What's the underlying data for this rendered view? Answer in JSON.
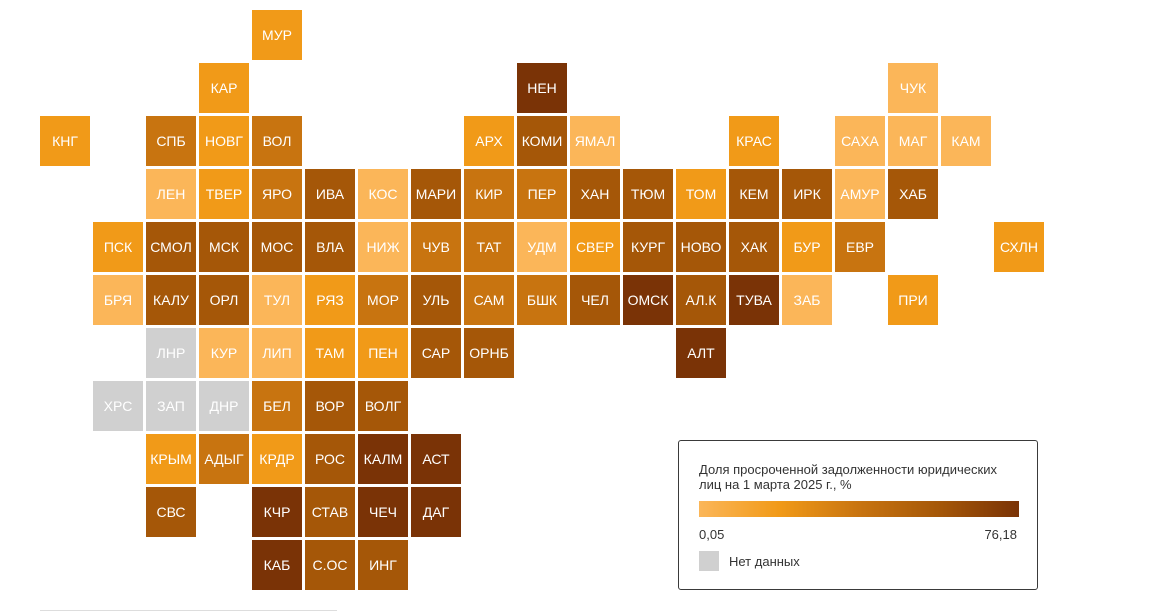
{
  "colors": {
    "scale": [
      "#fbb659",
      "#f19a18",
      "#c87410",
      "#a55708",
      "#7a3306"
    ],
    "no_data": "#d0d0d0"
  },
  "legend": {
    "title": "Доля просроченной задолженности юридических лиц на 1 марта 2025  г., %",
    "min": "0,05",
    "max": "76,18",
    "no_data_label": "Нет данных"
  },
  "regions": [
    {
      "code": "МУР",
      "row": 0,
      "col": 5,
      "shade": 1
    },
    {
      "code": "КАР",
      "row": 1,
      "col": 4,
      "shade": 1
    },
    {
      "code": "НЕН",
      "row": 1,
      "col": 10,
      "shade": 4
    },
    {
      "code": "ЧУК",
      "row": 1,
      "col": 17,
      "shade": 0
    },
    {
      "code": "КНГ",
      "row": 2,
      "col": 1,
      "shade": 1
    },
    {
      "code": "СПБ",
      "row": 2,
      "col": 3,
      "shade": 2
    },
    {
      "code": "НОВГ",
      "row": 2,
      "col": 4,
      "shade": 1
    },
    {
      "code": "ВОЛ",
      "row": 2,
      "col": 5,
      "shade": 2
    },
    {
      "code": "АРХ",
      "row": 2,
      "col": 9,
      "shade": 1
    },
    {
      "code": "КОМИ",
      "row": 2,
      "col": 10,
      "shade": 3
    },
    {
      "code": "ЯМАЛ",
      "row": 2,
      "col": 11,
      "shade": 0
    },
    {
      "code": "КРАС",
      "row": 2,
      "col": 14,
      "shade": 1
    },
    {
      "code": "САХА",
      "row": 2,
      "col": 16,
      "shade": 0
    },
    {
      "code": "МАГ",
      "row": 2,
      "col": 17,
      "shade": 0
    },
    {
      "code": "КАМ",
      "row": 2,
      "col": 18,
      "shade": 0
    },
    {
      "code": "ЛЕН",
      "row": 3,
      "col": 3,
      "shade": 0
    },
    {
      "code": "ТВЕР",
      "row": 3,
      "col": 4,
      "shade": 1
    },
    {
      "code": "ЯРО",
      "row": 3,
      "col": 5,
      "shade": 2
    },
    {
      "code": "ИВА",
      "row": 3,
      "col": 6,
      "shade": 3
    },
    {
      "code": "КОС",
      "row": 3,
      "col": 7,
      "shade": 0
    },
    {
      "code": "МАРИ",
      "row": 3,
      "col": 8,
      "shade": 3
    },
    {
      "code": "КИР",
      "row": 3,
      "col": 9,
      "shade": 2
    },
    {
      "code": "ПЕР",
      "row": 3,
      "col": 10,
      "shade": 2
    },
    {
      "code": "ХАН",
      "row": 3,
      "col": 11,
      "shade": 3
    },
    {
      "code": "ТЮМ",
      "row": 3,
      "col": 12,
      "shade": 3
    },
    {
      "code": "ТОМ",
      "row": 3,
      "col": 13,
      "shade": 1
    },
    {
      "code": "КЕМ",
      "row": 3,
      "col": 14,
      "shade": 3
    },
    {
      "code": "ИРК",
      "row": 3,
      "col": 15,
      "shade": 3
    },
    {
      "code": "АМУР",
      "row": 3,
      "col": 16,
      "shade": 0
    },
    {
      "code": "ХАБ",
      "row": 3,
      "col": 17,
      "shade": 3
    },
    {
      "code": "ПСК",
      "row": 4,
      "col": 2,
      "shade": 1
    },
    {
      "code": "СМОЛ",
      "row": 4,
      "col": 3,
      "shade": 3
    },
    {
      "code": "МСК",
      "row": 4,
      "col": 4,
      "shade": 3
    },
    {
      "code": "МОС",
      "row": 4,
      "col": 5,
      "shade": 3
    },
    {
      "code": "ВЛА",
      "row": 4,
      "col": 6,
      "shade": 3
    },
    {
      "code": "НИЖ",
      "row": 4,
      "col": 7,
      "shade": 0
    },
    {
      "code": "ЧУВ",
      "row": 4,
      "col": 8,
      "shade": 2
    },
    {
      "code": "ТАТ",
      "row": 4,
      "col": 9,
      "shade": 2
    },
    {
      "code": "УДМ",
      "row": 4,
      "col": 10,
      "shade": 0
    },
    {
      "code": "СВЕР",
      "row": 4,
      "col": 11,
      "shade": 1
    },
    {
      "code": "КУРГ",
      "row": 4,
      "col": 12,
      "shade": 3
    },
    {
      "code": "НОВО",
      "row": 4,
      "col": 13,
      "shade": 3
    },
    {
      "code": "ХАК",
      "row": 4,
      "col": 14,
      "shade": 3
    },
    {
      "code": "БУР",
      "row": 4,
      "col": 15,
      "shade": 1
    },
    {
      "code": "ЕВР",
      "row": 4,
      "col": 16,
      "shade": 2
    },
    {
      "code": "СХЛН",
      "row": 4,
      "col": 19,
      "shade": 1
    },
    {
      "code": "БРЯ",
      "row": 5,
      "col": 2,
      "shade": 0
    },
    {
      "code": "КАЛУ",
      "row": 5,
      "col": 3,
      "shade": 3
    },
    {
      "code": "ОРЛ",
      "row": 5,
      "col": 4,
      "shade": 3
    },
    {
      "code": "ТУЛ",
      "row": 5,
      "col": 5,
      "shade": 0
    },
    {
      "code": "РЯЗ",
      "row": 5,
      "col": 6,
      "shade": 1
    },
    {
      "code": "МОР",
      "row": 5,
      "col": 7,
      "shade": 2
    },
    {
      "code": "УЛЬ",
      "row": 5,
      "col": 8,
      "shade": 3
    },
    {
      "code": "САМ",
      "row": 5,
      "col": 9,
      "shade": 2
    },
    {
      "code": "БШК",
      "row": 5,
      "col": 10,
      "shade": 2
    },
    {
      "code": "ЧЕЛ",
      "row": 5,
      "col": 11,
      "shade": 3
    },
    {
      "code": "ОМСК",
      "row": 5,
      "col": 12,
      "shade": 4
    },
    {
      "code": "АЛ.К",
      "row": 5,
      "col": 13,
      "shade": 3
    },
    {
      "code": "ТУВА",
      "row": 5,
      "col": 14,
      "shade": 4
    },
    {
      "code": "ЗАБ",
      "row": 5,
      "col": 15,
      "shade": 0
    },
    {
      "code": "ПРИ",
      "row": 5,
      "col": 17,
      "shade": 1
    },
    {
      "code": "ЛНР",
      "row": 6,
      "col": 3,
      "shade": -1
    },
    {
      "code": "КУР",
      "row": 6,
      "col": 4,
      "shade": 0
    },
    {
      "code": "ЛИП",
      "row": 6,
      "col": 5,
      "shade": 0
    },
    {
      "code": "ТАМ",
      "row": 6,
      "col": 6,
      "shade": 1
    },
    {
      "code": "ПЕН",
      "row": 6,
      "col": 7,
      "shade": 1
    },
    {
      "code": "САР",
      "row": 6,
      "col": 8,
      "shade": 3
    },
    {
      "code": "ОРНБ",
      "row": 6,
      "col": 9,
      "shade": 3
    },
    {
      "code": "АЛТ",
      "row": 6,
      "col": 13,
      "shade": 4
    },
    {
      "code": "ХРС",
      "row": 7,
      "col": 2,
      "shade": -1
    },
    {
      "code": "ЗАП",
      "row": 7,
      "col": 3,
      "shade": -1
    },
    {
      "code": "ДНР",
      "row": 7,
      "col": 4,
      "shade": -1
    },
    {
      "code": "БЕЛ",
      "row": 7,
      "col": 5,
      "shade": 2
    },
    {
      "code": "ВОР",
      "row": 7,
      "col": 6,
      "shade": 3
    },
    {
      "code": "ВОЛГ",
      "row": 7,
      "col": 7,
      "shade": 3
    },
    {
      "code": "КРЫМ",
      "row": 8,
      "col": 3,
      "shade": 1
    },
    {
      "code": "АДЫГ",
      "row": 8,
      "col": 4,
      "shade": 2
    },
    {
      "code": "КРДР",
      "row": 8,
      "col": 5,
      "shade": 1
    },
    {
      "code": "РОС",
      "row": 8,
      "col": 6,
      "shade": 3
    },
    {
      "code": "КАЛМ",
      "row": 8,
      "col": 7,
      "shade": 4
    },
    {
      "code": "АСТ",
      "row": 8,
      "col": 8,
      "shade": 4
    },
    {
      "code": "СВС",
      "row": 9,
      "col": 3,
      "shade": 3
    },
    {
      "code": "КЧР",
      "row": 9,
      "col": 5,
      "shade": 4
    },
    {
      "code": "СТАВ",
      "row": 9,
      "col": 6,
      "shade": 3
    },
    {
      "code": "ЧЕЧ",
      "row": 9,
      "col": 7,
      "shade": 4
    },
    {
      "code": "ДАГ",
      "row": 9,
      "col": 8,
      "shade": 4
    },
    {
      "code": "КАБ",
      "row": 10,
      "col": 5,
      "shade": 4
    },
    {
      "code": "С.ОС",
      "row": 10,
      "col": 6,
      "shade": 3
    },
    {
      "code": "ИНГ",
      "row": 10,
      "col": 7,
      "shade": 3
    }
  ]
}
